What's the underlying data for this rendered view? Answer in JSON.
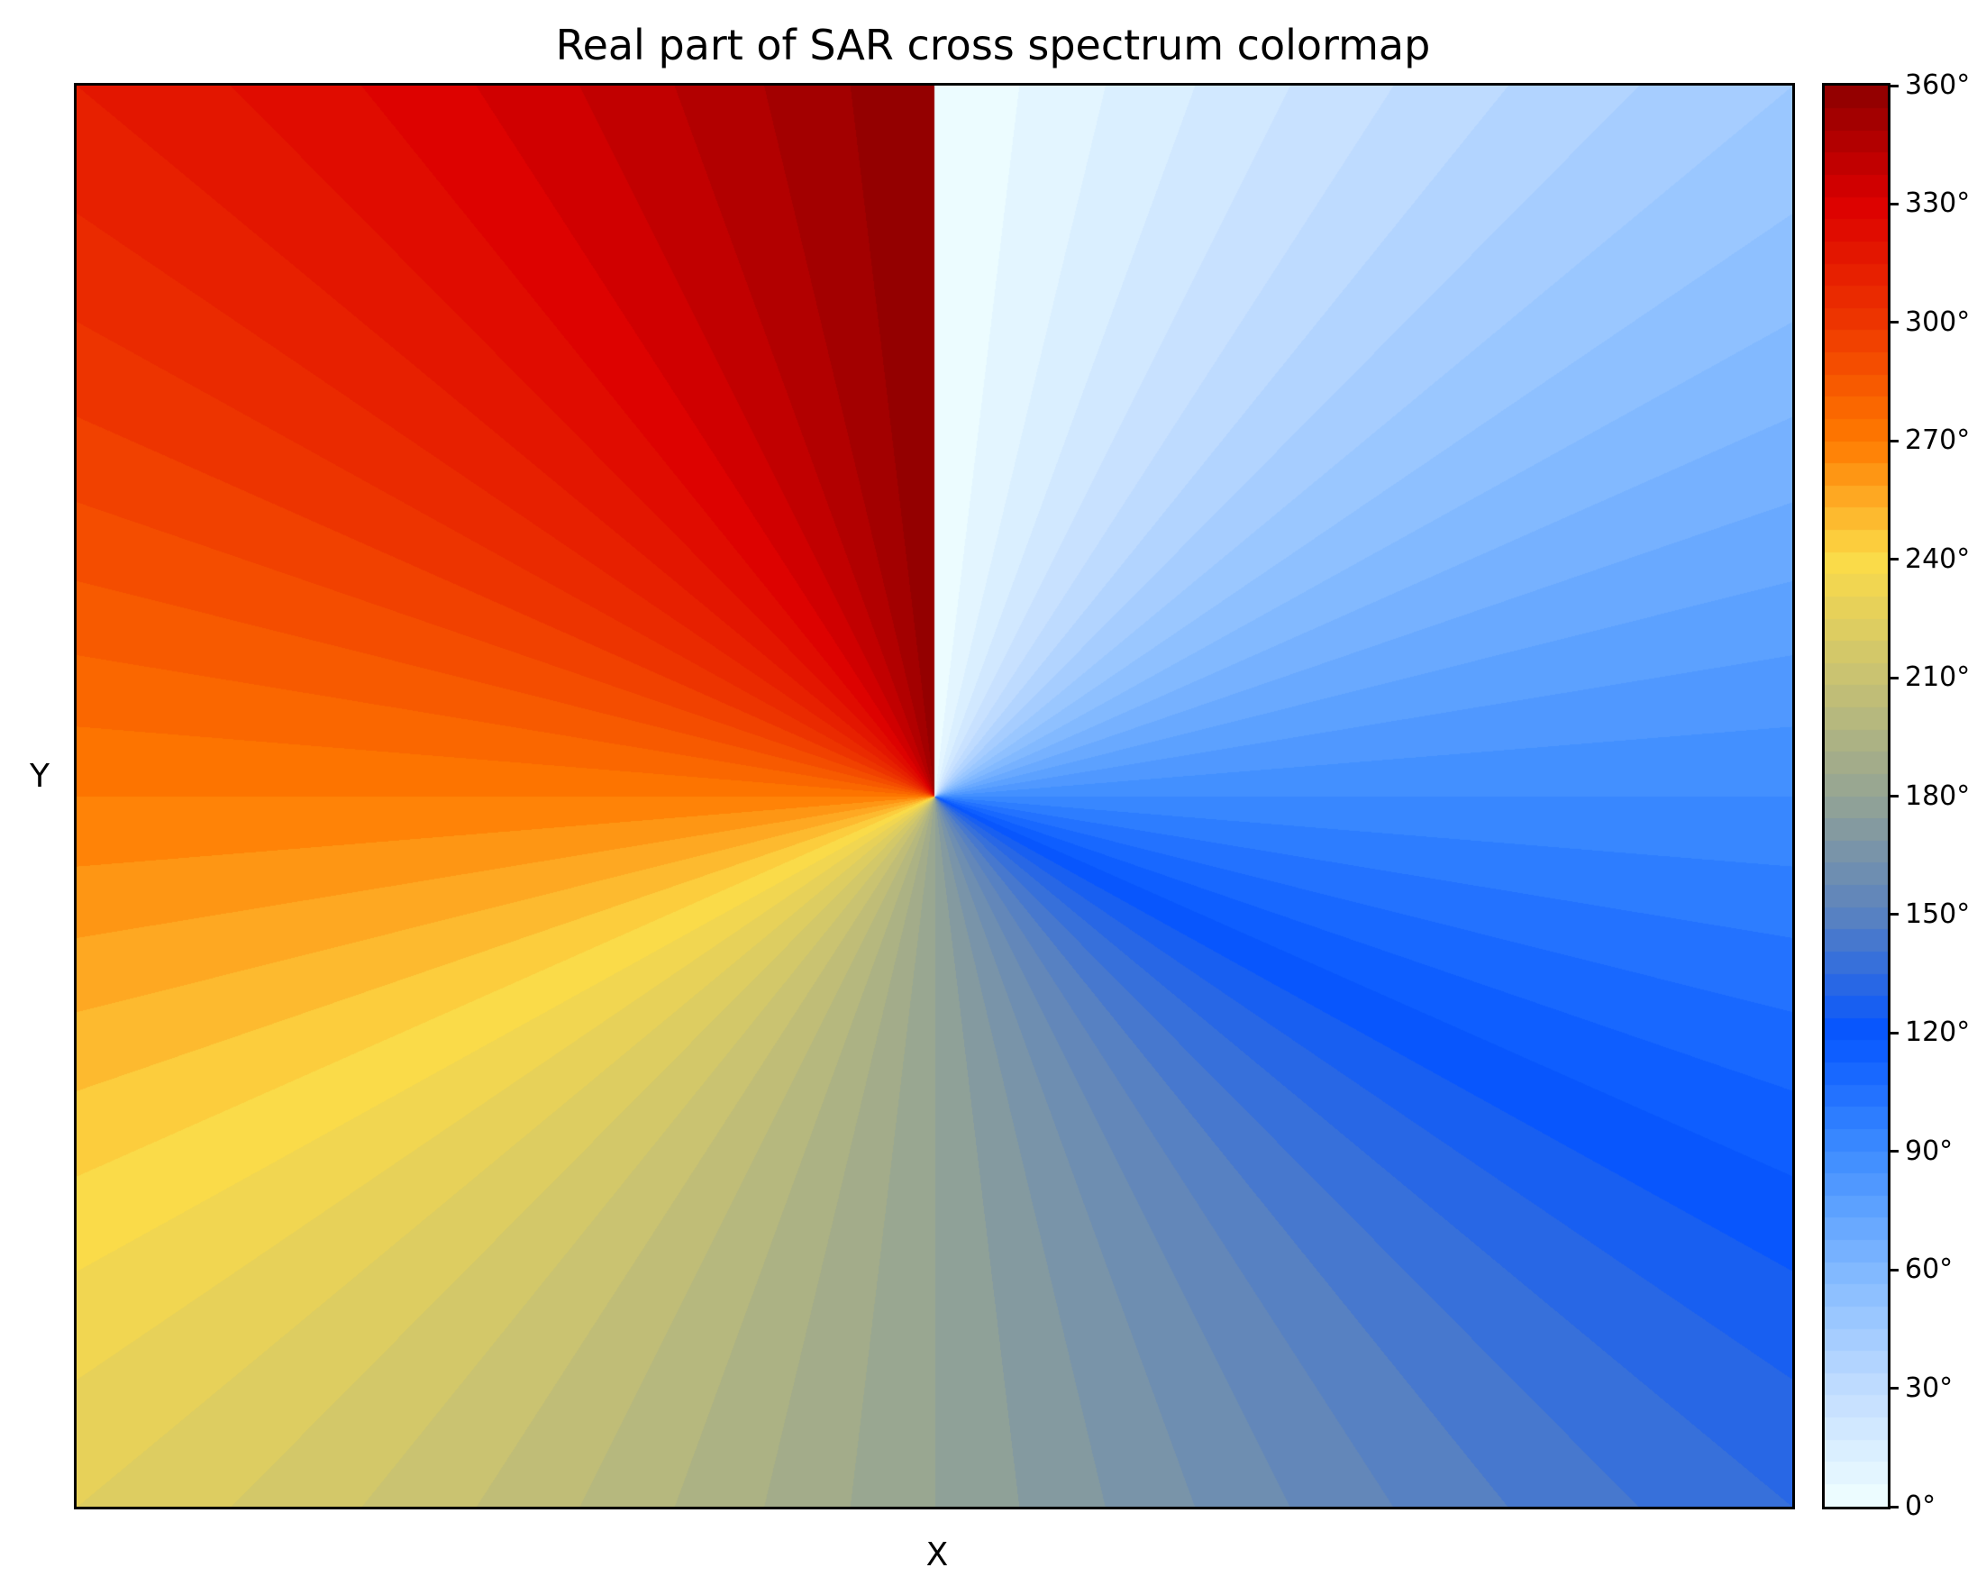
{
  "chart_data": {
    "type": "heatmap",
    "title": "Real part of SAR cross spectrum colormap",
    "xlabel": "X",
    "ylabel": "Y",
    "xticks": [],
    "yticks": [],
    "field": "phase angle around center, 0° at top increasing clockwise (atan2(x, y))",
    "vmin": 0,
    "vmax": 360,
    "levels": 64,
    "colorbar": {
      "ticks": [
        0,
        30,
        60,
        90,
        120,
        150,
        180,
        210,
        240,
        270,
        300,
        330,
        360
      ],
      "tick_labels": [
        "0°",
        "30°",
        "60°",
        "90°",
        "120°",
        "150°",
        "180°",
        "210°",
        "240°",
        "270°",
        "300°",
        "330°",
        "360°"
      ]
    },
    "colormap": [
      {
        "value": 0,
        "color": "#f0ffff"
      },
      {
        "value": 30,
        "color": "#c0dcff"
      },
      {
        "value": 60,
        "color": "#80b8ff"
      },
      {
        "value": 90,
        "color": "#3d8cff"
      },
      {
        "value": 120,
        "color": "#0555ff"
      },
      {
        "value": 150,
        "color": "#5a82c0"
      },
      {
        "value": 180,
        "color": "#94a494"
      },
      {
        "value": 210,
        "color": "#c8c272"
      },
      {
        "value": 240,
        "color": "#fcdc48"
      },
      {
        "value": 270,
        "color": "#ff7a00"
      },
      {
        "value": 300,
        "color": "#ee3600"
      },
      {
        "value": 330,
        "color": "#dc0000"
      },
      {
        "value": 360,
        "color": "#8c0000"
      }
    ]
  }
}
